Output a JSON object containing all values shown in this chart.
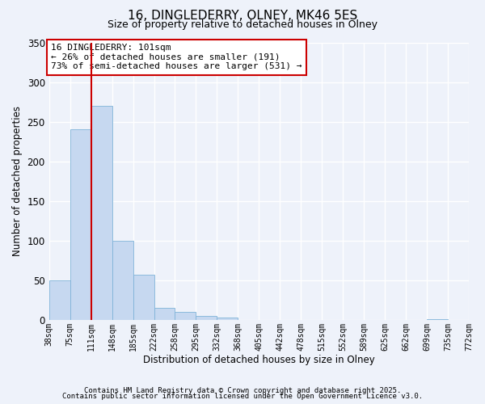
{
  "title": "16, DINGLEDERRY, OLNEY, MK46 5ES",
  "subtitle": "Size of property relative to detached houses in Olney",
  "xlabel": "Distribution of detached houses by size in Olney",
  "ylabel": "Number of detached properties",
  "bar_values": [
    50,
    240,
    270,
    100,
    57,
    15,
    10,
    5,
    3,
    0,
    0,
    0,
    0,
    0,
    0,
    0,
    0,
    0,
    1,
    0
  ],
  "bin_labels": [
    "38sqm",
    "75sqm",
    "111sqm",
    "148sqm",
    "185sqm",
    "222sqm",
    "258sqm",
    "295sqm",
    "332sqm",
    "368sqm",
    "405sqm",
    "442sqm",
    "478sqm",
    "515sqm",
    "552sqm",
    "589sqm",
    "625sqm",
    "662sqm",
    "699sqm",
    "735sqm",
    "772sqm"
  ],
  "bar_color": "#c6d8f0",
  "bar_edge_color": "#7fb3d8",
  "vline_x": 2,
  "vline_color": "#cc0000",
  "annotation_title": "16 DINGLEDERRY: 101sqm",
  "annotation_line1": "← 26% of detached houses are smaller (191)",
  "annotation_line2": "73% of semi-detached houses are larger (531) →",
  "annotation_box_color": "#ffffff",
  "annotation_box_edge": "#cc0000",
  "ylim": [
    0,
    350
  ],
  "yticks": [
    0,
    50,
    100,
    150,
    200,
    250,
    300,
    350
  ],
  "footnote1": "Contains HM Land Registry data © Crown copyright and database right 2025.",
  "footnote2": "Contains public sector information licensed under the Open Government Licence v3.0.",
  "background_color": "#eef2fa",
  "grid_color": "#ffffff"
}
